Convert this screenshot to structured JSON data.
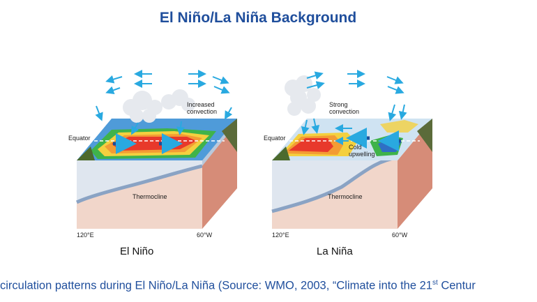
{
  "slide": {
    "title": "El Niño/La Niña Background"
  },
  "panels": [
    {
      "name": "El Niño",
      "equator": "Equator",
      "convection": "Increased convection",
      "thermocline": "Thermocline",
      "lon_west": "120°E",
      "lon_east": "60°W"
    },
    {
      "name": "La Niña",
      "equator": "Equator",
      "convection": "Strong convection",
      "upwelling": "Cold upwelling",
      "thermocline": "Thermocline",
      "lon_west": "120°E",
      "lon_east": "60°W"
    }
  ],
  "caption": {
    "text_before": "circulation patterns during El Niño/La Niña (Source: WMO, 2003, “Climate into the 21",
    "superscript": "st",
    "text_after": " Centur"
  },
  "colors": {
    "title": "#1f4e9c",
    "arrows": "#29a9e0",
    "warm_water": "#e8392b",
    "cold_water": "#2f6fc4",
    "block_side": "#d68c78",
    "block_front": "#f1d6ca"
  }
}
